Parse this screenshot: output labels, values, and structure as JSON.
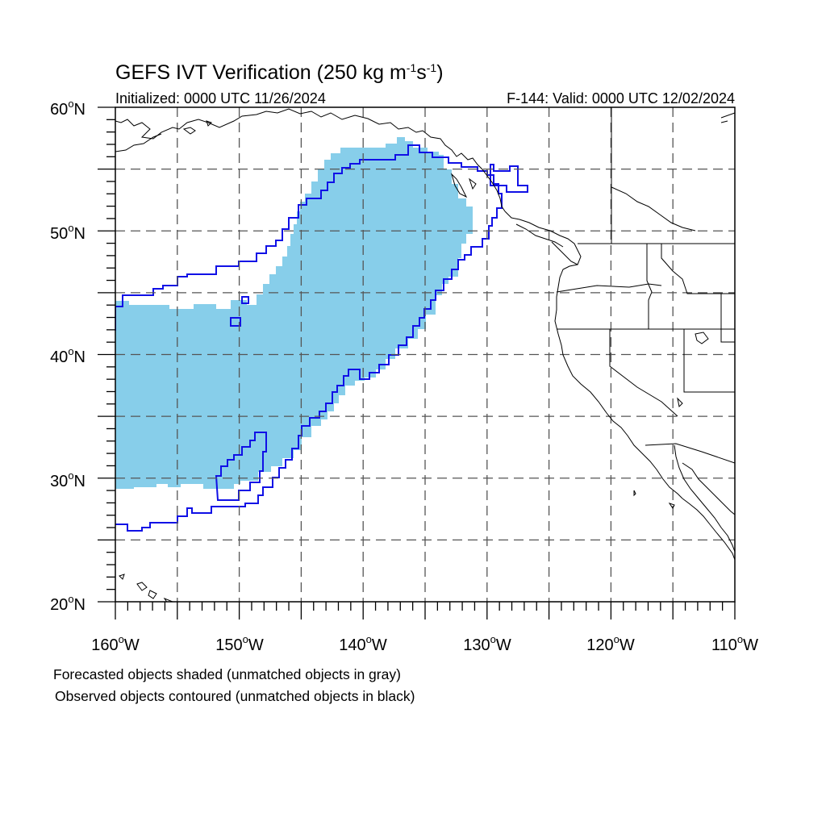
{
  "title": {
    "main": "GEFS IVT Verification (250 kg m",
    "exp1": "-1",
    "mid": "s",
    "exp2": "-1",
    "close": ")"
  },
  "initialized": "Initialized: 0000 UTC 11/26/2024",
  "valid": "F-144: Valid: 0000 UTC 12/02/2024",
  "lat_labels": [
    "60",
    "50",
    "40",
    "30",
    "20"
  ],
  "lat_suffix": "N",
  "lon_labels": [
    "160",
    "150",
    "140",
    "130",
    "120",
    "110"
  ],
  "lon_suffix": "W",
  "degree_symbol": "o",
  "footnotes": [
    "Forecasted objects shaded (unmatched objects in gray)",
    "Observed objects contoured (unmatched objects in black)"
  ],
  "colors": {
    "forecast_fill": "#87ceea",
    "observed_contour": "#1010e6",
    "coastline": "#000000",
    "grid": "#555555"
  },
  "map_extent": {
    "lon": [
      -160,
      -110
    ],
    "lat": [
      20,
      60
    ]
  },
  "grid_spacing_deg": 5
}
